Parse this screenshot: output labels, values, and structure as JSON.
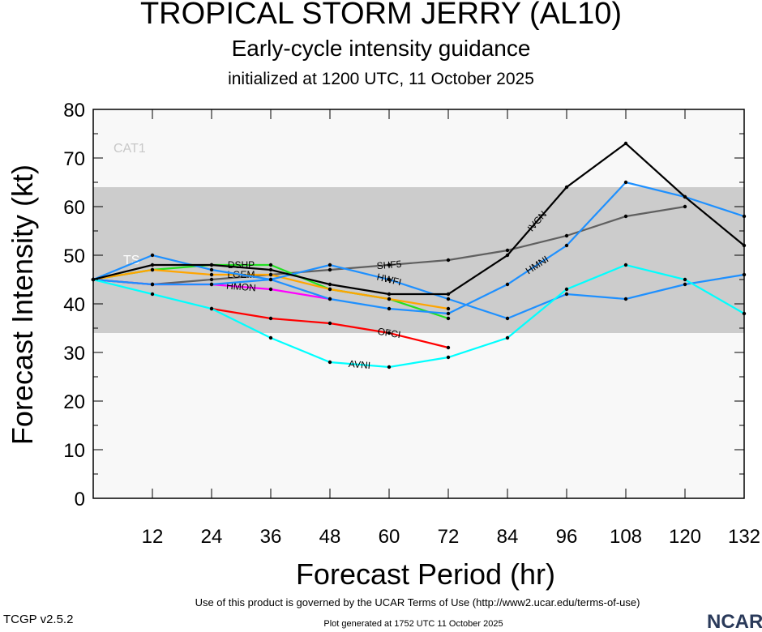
{
  "chart_data": {
    "type": "line",
    "title": "TROPICAL STORM JERRY (AL10)",
    "subtitle": "Early-cycle intensity guidance",
    "subtitle2": "initialized at 1200 UTC, 11 October 2025",
    "xlabel": "Forecast Period (hr)",
    "ylabel": "Forecast Intensity (kt)",
    "xlim": [
      0,
      132
    ],
    "ylim": [
      0,
      80
    ],
    "xticks": [
      12,
      24,
      36,
      48,
      60,
      72,
      84,
      96,
      108,
      120,
      132
    ],
    "yticks": [
      0,
      10,
      20,
      30,
      40,
      50,
      60,
      70,
      80
    ],
    "bands": [
      {
        "label": "TS",
        "from": 34,
        "to": 64,
        "color": "#cccccc"
      },
      {
        "label": "CAT1",
        "from": 64,
        "to": 80,
        "color": "#f8f8f8"
      }
    ],
    "series": [
      {
        "name": "SHF5",
        "color": "#606060",
        "x": [
          0,
          12,
          24,
          36,
          48,
          60,
          72,
          84,
          96,
          108,
          120
        ],
        "y": [
          45,
          44,
          45,
          46,
          47,
          48,
          49,
          51,
          54,
          58,
          60
        ],
        "label_at": 60
      },
      {
        "name": "DSHP",
        "color": "#22e022",
        "x": [
          0,
          12,
          24,
          36,
          48,
          60,
          72
        ],
        "y": [
          45,
          47,
          48,
          48,
          43,
          41,
          37
        ],
        "label_at": 30
      },
      {
        "name": "LGEM",
        "color": "#ffa500",
        "x": [
          0,
          12,
          24,
          36,
          48,
          60,
          72
        ],
        "y": [
          45,
          47,
          46,
          46,
          43,
          41,
          39
        ],
        "label_at": 30
      },
      {
        "name": "HMON",
        "color": "#ff00ff",
        "x": [
          0,
          12,
          24,
          36,
          48
        ],
        "y": [
          45,
          44,
          44,
          43,
          41
        ],
        "label_at": 30
      },
      {
        "name": "OFCI",
        "color": "#ff0000",
        "x": [
          24,
          36,
          48,
          60,
          72
        ],
        "y": [
          39,
          37,
          36,
          34,
          31
        ],
        "label_at": 60
      },
      {
        "name": "HMNI",
        "color": "#1e90ff",
        "x": [
          0,
          12,
          24,
          36,
          48,
          60,
          72,
          84,
          96,
          108,
          120,
          132
        ],
        "y": [
          45,
          44,
          44,
          45,
          41,
          39,
          38,
          44,
          52,
          65,
          62,
          58
        ],
        "label_at": 90
      },
      {
        "name": "HWFI",
        "color": "#1e90ff",
        "x": [
          0,
          12,
          24,
          36,
          48,
          60,
          72,
          84,
          96,
          108,
          120,
          132
        ],
        "y": [
          45,
          50,
          47,
          45,
          48,
          45,
          41,
          37,
          42,
          41,
          44,
          46
        ],
        "label_at": 60
      },
      {
        "name": "AVNI",
        "color": "#00ffff",
        "x": [
          0,
          12,
          24,
          36,
          48,
          60,
          72,
          84,
          96,
          108,
          120,
          132
        ],
        "y": [
          45,
          42,
          39,
          33,
          28,
          27,
          29,
          33,
          43,
          48,
          45,
          38
        ],
        "label_at": 54
      },
      {
        "name": "IVCN",
        "color": "#000000",
        "x": [
          0,
          12,
          24,
          36,
          48,
          60,
          72,
          84,
          96,
          108,
          120,
          132
        ],
        "y": [
          45,
          48,
          48,
          47,
          44,
          42,
          42,
          50,
          64,
          73,
          62,
          52
        ],
        "label_at": 90
      }
    ]
  },
  "footer": {
    "terms": "Use of this product is governed by the UCAR Terms of Use (http://www2.ucar.edu/terms-of-use)",
    "version": "TCGP v2.5.2",
    "generated": "Plot generated at 1752 UTC   11 October 2025",
    "logo": "NCAR"
  }
}
